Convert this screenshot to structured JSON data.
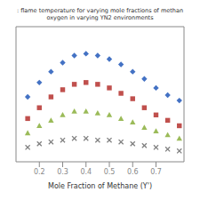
{
  "chart_data": {
    "type": "scatter",
    "title": ": flame temperature for varying mole fractions of methan\noxygen in varying YN2 environments",
    "xlabel": "Mole Fraction of Methane (Y')",
    "xlim": [
      0.1,
      0.82
    ],
    "ylim": [
      0.0,
      0.75
    ],
    "xticks": [
      0.2,
      0.3,
      0.4,
      0.5,
      0.6,
      0.7
    ],
    "yticks": [],
    "tick_labels": "x",
    "grid": false,
    "x": [
      0.15,
      0.2,
      0.25,
      0.3,
      0.35,
      0.4,
      0.45,
      0.5,
      0.55,
      0.6,
      0.65,
      0.7,
      0.75,
      0.8
    ],
    "series": [
      {
        "color": "#4472c4",
        "marker": "diamond",
        "values": [
          0.36,
          0.44,
          0.5,
          0.55,
          0.59,
          0.6,
          0.59,
          0.57,
          0.54,
          0.5,
          0.46,
          0.41,
          0.37,
          0.34
        ]
      },
      {
        "color": "#c0504d",
        "marker": "square",
        "values": [
          0.24,
          0.3,
          0.36,
          0.4,
          0.43,
          0.44,
          0.43,
          0.41,
          0.38,
          0.35,
          0.3,
          0.26,
          0.23,
          0.2
        ]
      },
      {
        "color": "#9bbb59",
        "marker": "triangle",
        "values": [
          0.16,
          0.2,
          0.23,
          0.26,
          0.28,
          0.28,
          0.27,
          0.26,
          0.24,
          0.22,
          0.19,
          0.17,
          0.15,
          0.13
        ]
      },
      {
        "color": "#808080",
        "marker": "x",
        "values": [
          0.08,
          0.1,
          0.11,
          0.12,
          0.13,
          0.13,
          0.12,
          0.12,
          0.11,
          0.1,
          0.09,
          0.08,
          0.07,
          0.06
        ]
      }
    ]
  }
}
